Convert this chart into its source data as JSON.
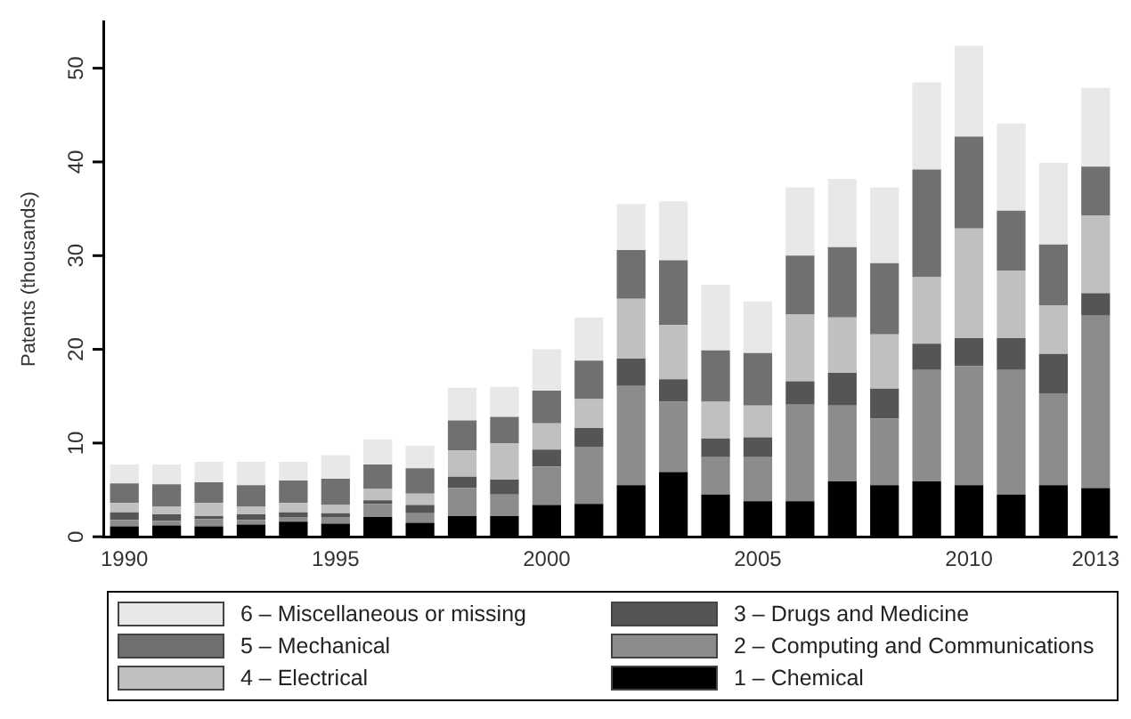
{
  "chart_data": {
    "type": "bar",
    "stacked": true,
    "ylabel": "Patents (thousands)",
    "categories": [
      "1990",
      null,
      null,
      null,
      null,
      "1995",
      null,
      null,
      null,
      null,
      "2000",
      null,
      null,
      null,
      null,
      "2005",
      null,
      null,
      null,
      null,
      "2010",
      null,
      null,
      "2013"
    ],
    "ylim": [
      0,
      55
    ],
    "yticks": [
      0,
      10,
      20,
      30,
      40,
      50
    ],
    "grid": false,
    "legend": "bottom",
    "series": [
      {
        "name": "1 – Chemical",
        "color": "#000000",
        "values": [
          1.1,
          1.2,
          1.1,
          1.3,
          1.6,
          1.4,
          2.1,
          1.5,
          2.2,
          2.2,
          3.4,
          3.5,
          5.5,
          6.9,
          4.5,
          3.8,
          3.8,
          5.9,
          5.5,
          5.9,
          5.5,
          4.5,
          5.5,
          5.2
        ]
      },
      {
        "name": "2 – Computing and Communications",
        "color": "#8c8c8c",
        "values": [
          0.7,
          0.5,
          0.8,
          0.5,
          0.5,
          0.7,
          1.4,
          1.0,
          3.0,
          2.3,
          4.1,
          6.1,
          10.6,
          7.5,
          4.0,
          4.7,
          10.3,
          8.1,
          7.1,
          11.9,
          12.7,
          13.3,
          9.8,
          18.4
        ]
      },
      {
        "name": "3 – Drugs and Medicine",
        "color": "#555555",
        "values": [
          0.8,
          0.7,
          0.3,
          0.6,
          0.5,
          0.4,
          0.4,
          0.9,
          1.2,
          1.6,
          1.8,
          2.0,
          2.9,
          2.4,
          2.0,
          2.1,
          2.5,
          3.5,
          3.2,
          2.8,
          3.0,
          3.4,
          4.2,
          2.4
        ]
      },
      {
        "name": "4 – Electrical",
        "color": "#c0c0c0",
        "values": [
          1.0,
          0.8,
          1.4,
          0.8,
          1.0,
          0.9,
          1.2,
          1.2,
          2.8,
          3.9,
          2.8,
          3.1,
          6.4,
          5.8,
          3.9,
          3.4,
          7.1,
          5.9,
          5.8,
          7.1,
          11.7,
          7.2,
          5.2,
          8.3
        ]
      },
      {
        "name": "5 – Mechanical",
        "color": "#707070",
        "values": [
          2.1,
          2.4,
          2.2,
          2.3,
          2.4,
          2.8,
          2.6,
          2.7,
          3.2,
          2.8,
          3.5,
          4.1,
          5.2,
          6.9,
          5.5,
          5.6,
          6.3,
          7.5,
          7.6,
          11.5,
          9.8,
          6.4,
          6.5,
          5.2
        ]
      },
      {
        "name": "6 – Miscellaneous or missing",
        "color": "#e8e8e8",
        "values": [
          2.0,
          2.1,
          2.2,
          2.5,
          2.0,
          2.5,
          2.7,
          2.4,
          3.5,
          3.2,
          4.4,
          4.6,
          4.9,
          6.3,
          7.0,
          5.5,
          7.3,
          7.3,
          8.1,
          9.3,
          9.7,
          9.3,
          8.7,
          8.4
        ]
      }
    ]
  }
}
